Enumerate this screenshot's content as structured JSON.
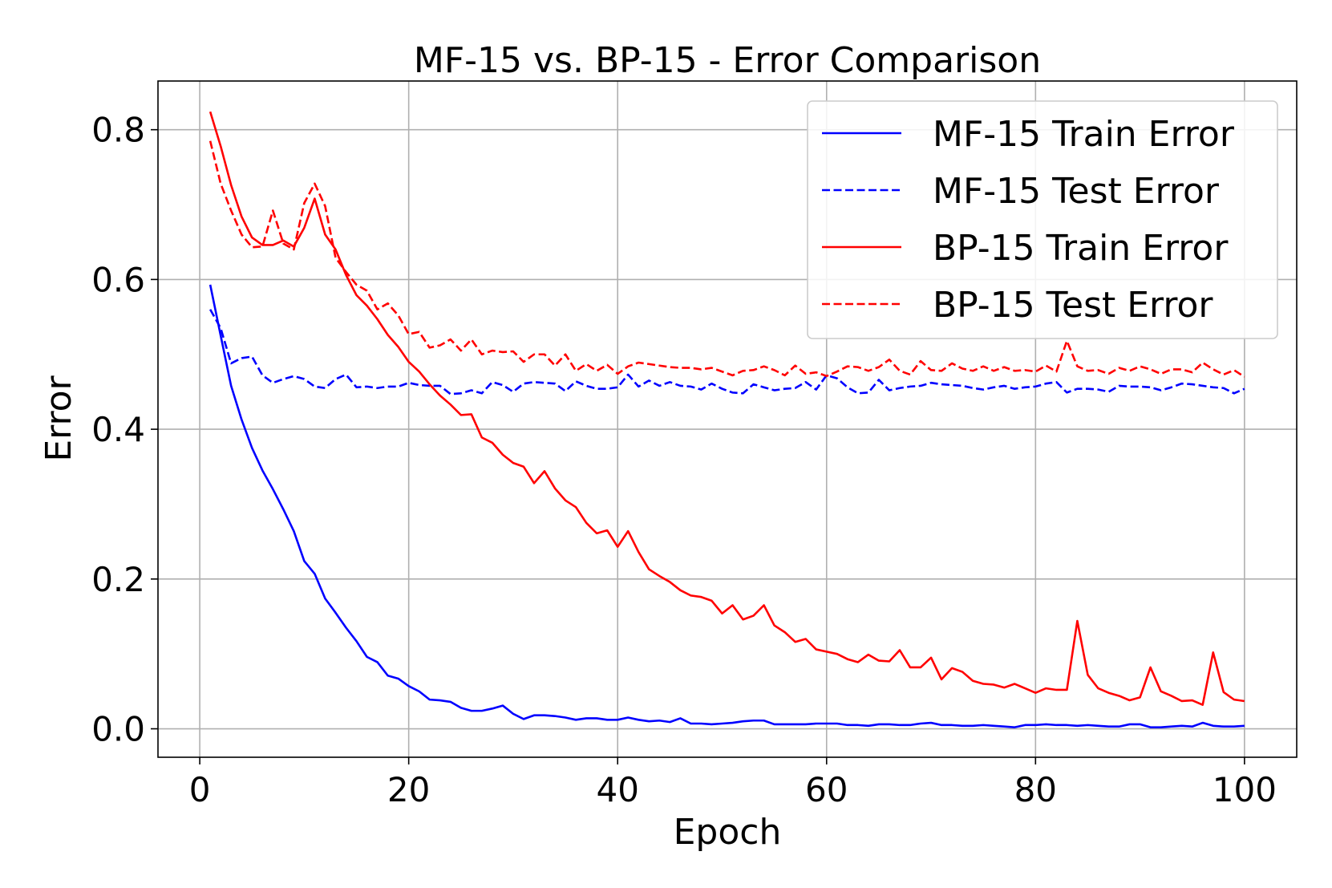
{
  "chart_data": {
    "type": "line",
    "title": "MF-15 vs. BP-15 - Error Comparison",
    "xlabel": "Epoch",
    "ylabel": "Error",
    "xlim": [
      -4,
      105
    ],
    "ylim": [
      -0.038,
      0.865
    ],
    "xticks": [
      0,
      20,
      40,
      60,
      80,
      100
    ],
    "yticks": [
      0.0,
      0.2,
      0.4,
      0.6,
      0.8
    ],
    "xtick_labels": [
      "0",
      "20",
      "40",
      "60",
      "80",
      "100"
    ],
    "ytick_labels": [
      "0.0",
      "0.2",
      "0.4",
      "0.6",
      "0.8"
    ],
    "grid": true,
    "legend_position": "upper-right",
    "series": [
      {
        "name": "MF-15 Train Error",
        "color": "#0000ff",
        "style": "solid",
        "x": [
          1,
          2,
          3,
          4,
          5,
          6,
          7,
          8,
          9,
          10,
          11,
          12,
          13,
          14,
          15,
          16,
          17,
          18,
          19,
          20,
          21,
          22,
          23,
          24,
          25,
          26,
          27,
          28,
          29,
          30,
          31,
          32,
          33,
          34,
          35,
          36,
          37,
          38,
          39,
          40,
          41,
          42,
          43,
          44,
          45,
          46,
          47,
          48,
          49,
          50,
          51,
          52,
          53,
          54,
          55,
          56,
          57,
          58,
          59,
          60,
          61,
          62,
          63,
          64,
          65,
          66,
          67,
          68,
          69,
          70,
          71,
          72,
          73,
          74,
          75,
          76,
          77,
          78,
          79,
          80,
          81,
          82,
          83,
          84,
          85,
          86,
          87,
          88,
          89,
          90,
          91,
          92,
          93,
          94,
          95,
          96,
          97,
          98,
          99,
          100
        ],
        "values": [
          0.593,
          0.525,
          0.458,
          0.413,
          0.375,
          0.345,
          0.32,
          0.293,
          0.264,
          0.224,
          0.207,
          0.174,
          0.155,
          0.135,
          0.117,
          0.096,
          0.089,
          0.071,
          0.067,
          0.057,
          0.05,
          0.039,
          0.038,
          0.036,
          0.028,
          0.024,
          0.024,
          0.027,
          0.031,
          0.02,
          0.013,
          0.018,
          0.018,
          0.017,
          0.015,
          0.012,
          0.014,
          0.014,
          0.012,
          0.012,
          0.015,
          0.012,
          0.01,
          0.011,
          0.009,
          0.014,
          0.007,
          0.007,
          0.006,
          0.007,
          0.008,
          0.01,
          0.011,
          0.011,
          0.006,
          0.006,
          0.006,
          0.006,
          0.007,
          0.007,
          0.007,
          0.005,
          0.005,
          0.004,
          0.006,
          0.006,
          0.005,
          0.005,
          0.007,
          0.008,
          0.005,
          0.005,
          0.004,
          0.004,
          0.005,
          0.004,
          0.003,
          0.002,
          0.005,
          0.005,
          0.006,
          0.005,
          0.005,
          0.004,
          0.005,
          0.004,
          0.003,
          0.003,
          0.006,
          0.006,
          0.002,
          0.002,
          0.003,
          0.004,
          0.003,
          0.008,
          0.004,
          0.003,
          0.003,
          0.004
        ]
      },
      {
        "name": "MF-15 Test Error",
        "color": "#0000ff",
        "style": "dashed",
        "x": [
          1,
          2,
          3,
          4,
          5,
          6,
          7,
          8,
          9,
          10,
          11,
          12,
          13,
          14,
          15,
          16,
          17,
          18,
          19,
          20,
          21,
          22,
          23,
          24,
          25,
          26,
          27,
          28,
          29,
          30,
          31,
          32,
          33,
          34,
          35,
          36,
          37,
          38,
          39,
          40,
          41,
          42,
          43,
          44,
          45,
          46,
          47,
          48,
          49,
          50,
          51,
          52,
          53,
          54,
          55,
          56,
          57,
          58,
          59,
          60,
          61,
          62,
          63,
          64,
          65,
          66,
          67,
          68,
          69,
          70,
          71,
          72,
          73,
          74,
          75,
          76,
          77,
          78,
          79,
          80,
          81,
          82,
          83,
          84,
          85,
          86,
          87,
          88,
          89,
          90,
          91,
          92,
          93,
          94,
          95,
          96,
          97,
          98,
          99,
          100
        ],
        "values": [
          0.56,
          0.535,
          0.488,
          0.495,
          0.497,
          0.472,
          0.462,
          0.467,
          0.471,
          0.467,
          0.457,
          0.455,
          0.467,
          0.473,
          0.456,
          0.457,
          0.455,
          0.457,
          0.457,
          0.462,
          0.459,
          0.458,
          0.458,
          0.447,
          0.448,
          0.452,
          0.448,
          0.463,
          0.459,
          0.45,
          0.461,
          0.463,
          0.462,
          0.461,
          0.451,
          0.464,
          0.458,
          0.454,
          0.454,
          0.456,
          0.473,
          0.457,
          0.465,
          0.458,
          0.463,
          0.458,
          0.457,
          0.453,
          0.461,
          0.454,
          0.449,
          0.448,
          0.46,
          0.456,
          0.452,
          0.454,
          0.455,
          0.463,
          0.453,
          0.472,
          0.468,
          0.456,
          0.448,
          0.449,
          0.466,
          0.452,
          0.455,
          0.457,
          0.458,
          0.462,
          0.46,
          0.459,
          0.458,
          0.455,
          0.453,
          0.456,
          0.458,
          0.454,
          0.456,
          0.457,
          0.461,
          0.463,
          0.449,
          0.454,
          0.454,
          0.453,
          0.45,
          0.458,
          0.457,
          0.457,
          0.456,
          0.452,
          0.456,
          0.461,
          0.46,
          0.458,
          0.456,
          0.455,
          0.448,
          0.454
        ]
      },
      {
        "name": "BP-15 Train Error",
        "color": "#ff0000",
        "style": "solid",
        "x": [
          1,
          2,
          3,
          4,
          5,
          6,
          7,
          8,
          9,
          10,
          11,
          12,
          13,
          14,
          15,
          16,
          17,
          18,
          19,
          20,
          21,
          22,
          23,
          24,
          25,
          26,
          27,
          28,
          29,
          30,
          31,
          32,
          33,
          34,
          35,
          36,
          37,
          38,
          39,
          40,
          41,
          42,
          43,
          44,
          45,
          46,
          47,
          48,
          49,
          50,
          51,
          52,
          53,
          54,
          55,
          56,
          57,
          58,
          59,
          60,
          61,
          62,
          63,
          64,
          65,
          66,
          67,
          68,
          69,
          70,
          71,
          72,
          73,
          74,
          75,
          76,
          77,
          78,
          79,
          80,
          81,
          82,
          83,
          84,
          85,
          86,
          87,
          88,
          89,
          90,
          91,
          92,
          93,
          94,
          95,
          96,
          97,
          98,
          99,
          100
        ],
        "values": [
          0.824,
          0.778,
          0.726,
          0.684,
          0.656,
          0.646,
          0.646,
          0.652,
          0.644,
          0.669,
          0.708,
          0.66,
          0.64,
          0.606,
          0.579,
          0.565,
          0.547,
          0.526,
          0.51,
          0.49,
          0.477,
          0.46,
          0.445,
          0.433,
          0.419,
          0.42,
          0.389,
          0.382,
          0.366,
          0.355,
          0.35,
          0.328,
          0.344,
          0.321,
          0.305,
          0.296,
          0.275,
          0.261,
          0.265,
          0.243,
          0.264,
          0.236,
          0.213,
          0.204,
          0.196,
          0.185,
          0.178,
          0.176,
          0.171,
          0.154,
          0.165,
          0.146,
          0.151,
          0.165,
          0.138,
          0.129,
          0.116,
          0.12,
          0.106,
          0.103,
          0.1,
          0.093,
          0.089,
          0.099,
          0.091,
          0.09,
          0.105,
          0.082,
          0.082,
          0.095,
          0.066,
          0.081,
          0.076,
          0.064,
          0.06,
          0.059,
          0.055,
          0.06,
          0.054,
          0.048,
          0.054,
          0.052,
          0.052,
          0.144,
          0.072,
          0.054,
          0.048,
          0.044,
          0.038,
          0.042,
          0.082,
          0.05,
          0.044,
          0.037,
          0.038,
          0.032,
          0.102,
          0.049,
          0.039,
          0.037
        ]
      },
      {
        "name": "BP-15 Test Error",
        "color": "#ff0000",
        "style": "dashed",
        "x": [
          1,
          2,
          3,
          4,
          5,
          6,
          7,
          8,
          9,
          10,
          11,
          12,
          13,
          14,
          15,
          16,
          17,
          18,
          19,
          20,
          21,
          22,
          23,
          24,
          25,
          26,
          27,
          28,
          29,
          30,
          31,
          32,
          33,
          34,
          35,
          36,
          37,
          38,
          39,
          40,
          41,
          42,
          43,
          44,
          45,
          46,
          47,
          48,
          49,
          50,
          51,
          52,
          53,
          54,
          55,
          56,
          57,
          58,
          59,
          60,
          61,
          62,
          63,
          64,
          65,
          66,
          67,
          68,
          69,
          70,
          71,
          72,
          73,
          74,
          75,
          76,
          77,
          78,
          79,
          80,
          81,
          82,
          83,
          84,
          85,
          86,
          87,
          88,
          89,
          90,
          91,
          92,
          93,
          94,
          95,
          96,
          97,
          98,
          99,
          100
        ],
        "values": [
          0.785,
          0.728,
          0.692,
          0.66,
          0.643,
          0.644,
          0.692,
          0.648,
          0.64,
          0.702,
          0.728,
          0.698,
          0.629,
          0.61,
          0.593,
          0.585,
          0.56,
          0.568,
          0.552,
          0.527,
          0.53,
          0.509,
          0.512,
          0.52,
          0.505,
          0.52,
          0.5,
          0.505,
          0.503,
          0.504,
          0.49,
          0.5,
          0.5,
          0.485,
          0.5,
          0.478,
          0.487,
          0.478,
          0.486,
          0.474,
          0.484,
          0.489,
          0.487,
          0.485,
          0.483,
          0.482,
          0.482,
          0.48,
          0.482,
          0.477,
          0.472,
          0.478,
          0.479,
          0.484,
          0.479,
          0.472,
          0.485,
          0.474,
          0.476,
          0.471,
          0.477,
          0.484,
          0.483,
          0.478,
          0.483,
          0.493,
          0.478,
          0.473,
          0.491,
          0.479,
          0.478,
          0.488,
          0.481,
          0.478,
          0.484,
          0.478,
          0.483,
          0.478,
          0.479,
          0.477,
          0.485,
          0.477,
          0.518,
          0.484,
          0.478,
          0.479,
          0.474,
          0.482,
          0.478,
          0.484,
          0.48,
          0.474,
          0.48,
          0.48,
          0.476,
          0.489,
          0.48,
          0.473,
          0.479,
          0.47
        ]
      }
    ]
  }
}
